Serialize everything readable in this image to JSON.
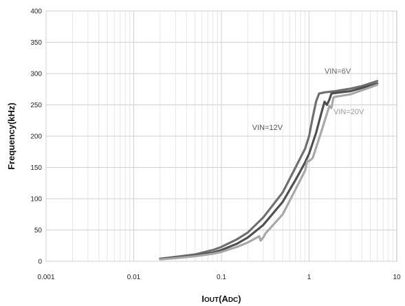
{
  "chart_data": {
    "type": "line",
    "title": "",
    "xlabel": "IOUT(ADC)",
    "ylabel": "Frequency(kHz)",
    "xscale": "log",
    "xlim": [
      0.001,
      10
    ],
    "ylim": [
      0,
      400
    ],
    "grid": true,
    "legend": "none",
    "x_ticks": [
      "0.001",
      "0.01",
      "0.1",
      "1",
      "10"
    ],
    "y_ticks": [
      "0",
      "50",
      "100",
      "150",
      "200",
      "250",
      "300",
      "350",
      "400"
    ],
    "annotations": [
      {
        "text": "VIN=6V",
        "color": "#666666",
        "series": 0
      },
      {
        "text": "VIN=12V",
        "color": "#555555",
        "series": 1
      },
      {
        "text": "VIN=20V",
        "color": "#9a9a9a",
        "series": 2
      }
    ],
    "series": [
      {
        "color": "#6f6f6f",
        "x": [
          0.02,
          0.03,
          0.05,
          0.08,
          0.1,
          0.15,
          0.2,
          0.3,
          0.5,
          0.7,
          0.9,
          1.0,
          1.1,
          1.2,
          1.3,
          1.5,
          2.0,
          3.0,
          4.0,
          6.0
        ],
        "y": [
          4,
          7,
          11,
          18,
          23,
          35,
          46,
          70,
          110,
          150,
          180,
          200,
          230,
          255,
          268,
          270,
          272,
          276,
          280,
          288
        ]
      },
      {
        "color": "#505050",
        "x": [
          0.02,
          0.03,
          0.05,
          0.08,
          0.1,
          0.15,
          0.2,
          0.3,
          0.5,
          0.7,
          0.9,
          1.0,
          1.2,
          1.4,
          1.5,
          1.6,
          1.7,
          1.8,
          2.0,
          3.0,
          6.0
        ],
        "y": [
          4,
          6,
          9,
          14,
          18,
          28,
          38,
          58,
          95,
          130,
          158,
          172,
          205,
          240,
          255,
          250,
          258,
          268,
          269,
          272,
          284
        ]
      },
      {
        "color": "#a8a8a8",
        "x": [
          0.02,
          0.03,
          0.05,
          0.08,
          0.1,
          0.15,
          0.2,
          0.27,
          0.28,
          0.3,
          0.32,
          0.5,
          0.7,
          0.9,
          0.95,
          1.0,
          1.1,
          1.4,
          1.7,
          1.8,
          1.9,
          2.0,
          3.0,
          6.0
        ],
        "y": [
          3,
          5,
          8,
          12,
          15,
          23,
          30,
          40,
          33,
          38,
          45,
          75,
          115,
          145,
          160,
          160,
          165,
          210,
          248,
          245,
          262,
          263,
          267,
          282
        ]
      }
    ]
  }
}
